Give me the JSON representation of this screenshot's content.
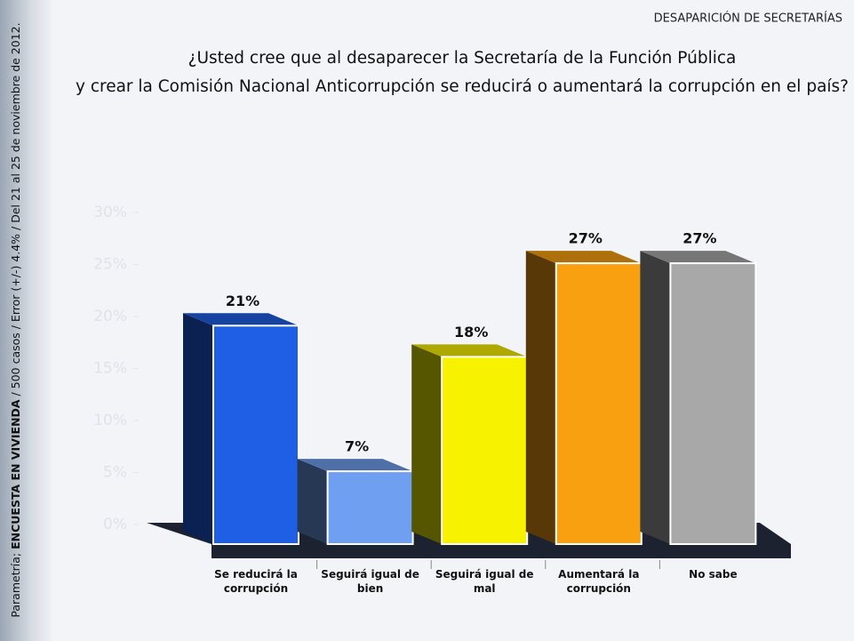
{
  "header": "DESAPARICIÓN DE SECRETARÍAS",
  "source": [
    "Parametría; ",
    "ENCUESTA EN VIVIENDA",
    " / 500 casos / Error (+/-) 4.4% / Del 21 al 25 de noviembre de 2012."
  ],
  "chart_data": {
    "type": "bar",
    "title": [
      "¿Usted cree que al desaparecer la Secretaría de la Función Pública",
      "y crear la Comisión Nacional Anticorrupción se reducirá o aumentará la corrupción en el país?"
    ],
    "categories": [
      "Se reducirá la corrupción",
      "Seguirá igual de bien",
      "Seguirá igual de mal",
      "Aumentará la corrupción",
      "No sabe"
    ],
    "values": [
      21,
      7,
      18,
      27,
      27
    ],
    "value_labels": [
      "21%",
      "7%",
      "18%",
      "27%",
      "27%"
    ],
    "colors": [
      "#1f5fe6",
      "#6f9ff0",
      "#f7f200",
      "#f9a010",
      "#a8a8a8"
    ],
    "ylim": [
      0,
      30
    ],
    "yticks": [
      {
        "value": 0,
        "label": "0%"
      },
      {
        "value": 5,
        "label": "5%"
      },
      {
        "value": 10,
        "label": "10%"
      },
      {
        "value": 15,
        "label": "15%"
      },
      {
        "value": 20,
        "label": "20%"
      },
      {
        "value": 25,
        "label": "25%"
      },
      {
        "value": 30,
        "label": "30%"
      }
    ]
  }
}
